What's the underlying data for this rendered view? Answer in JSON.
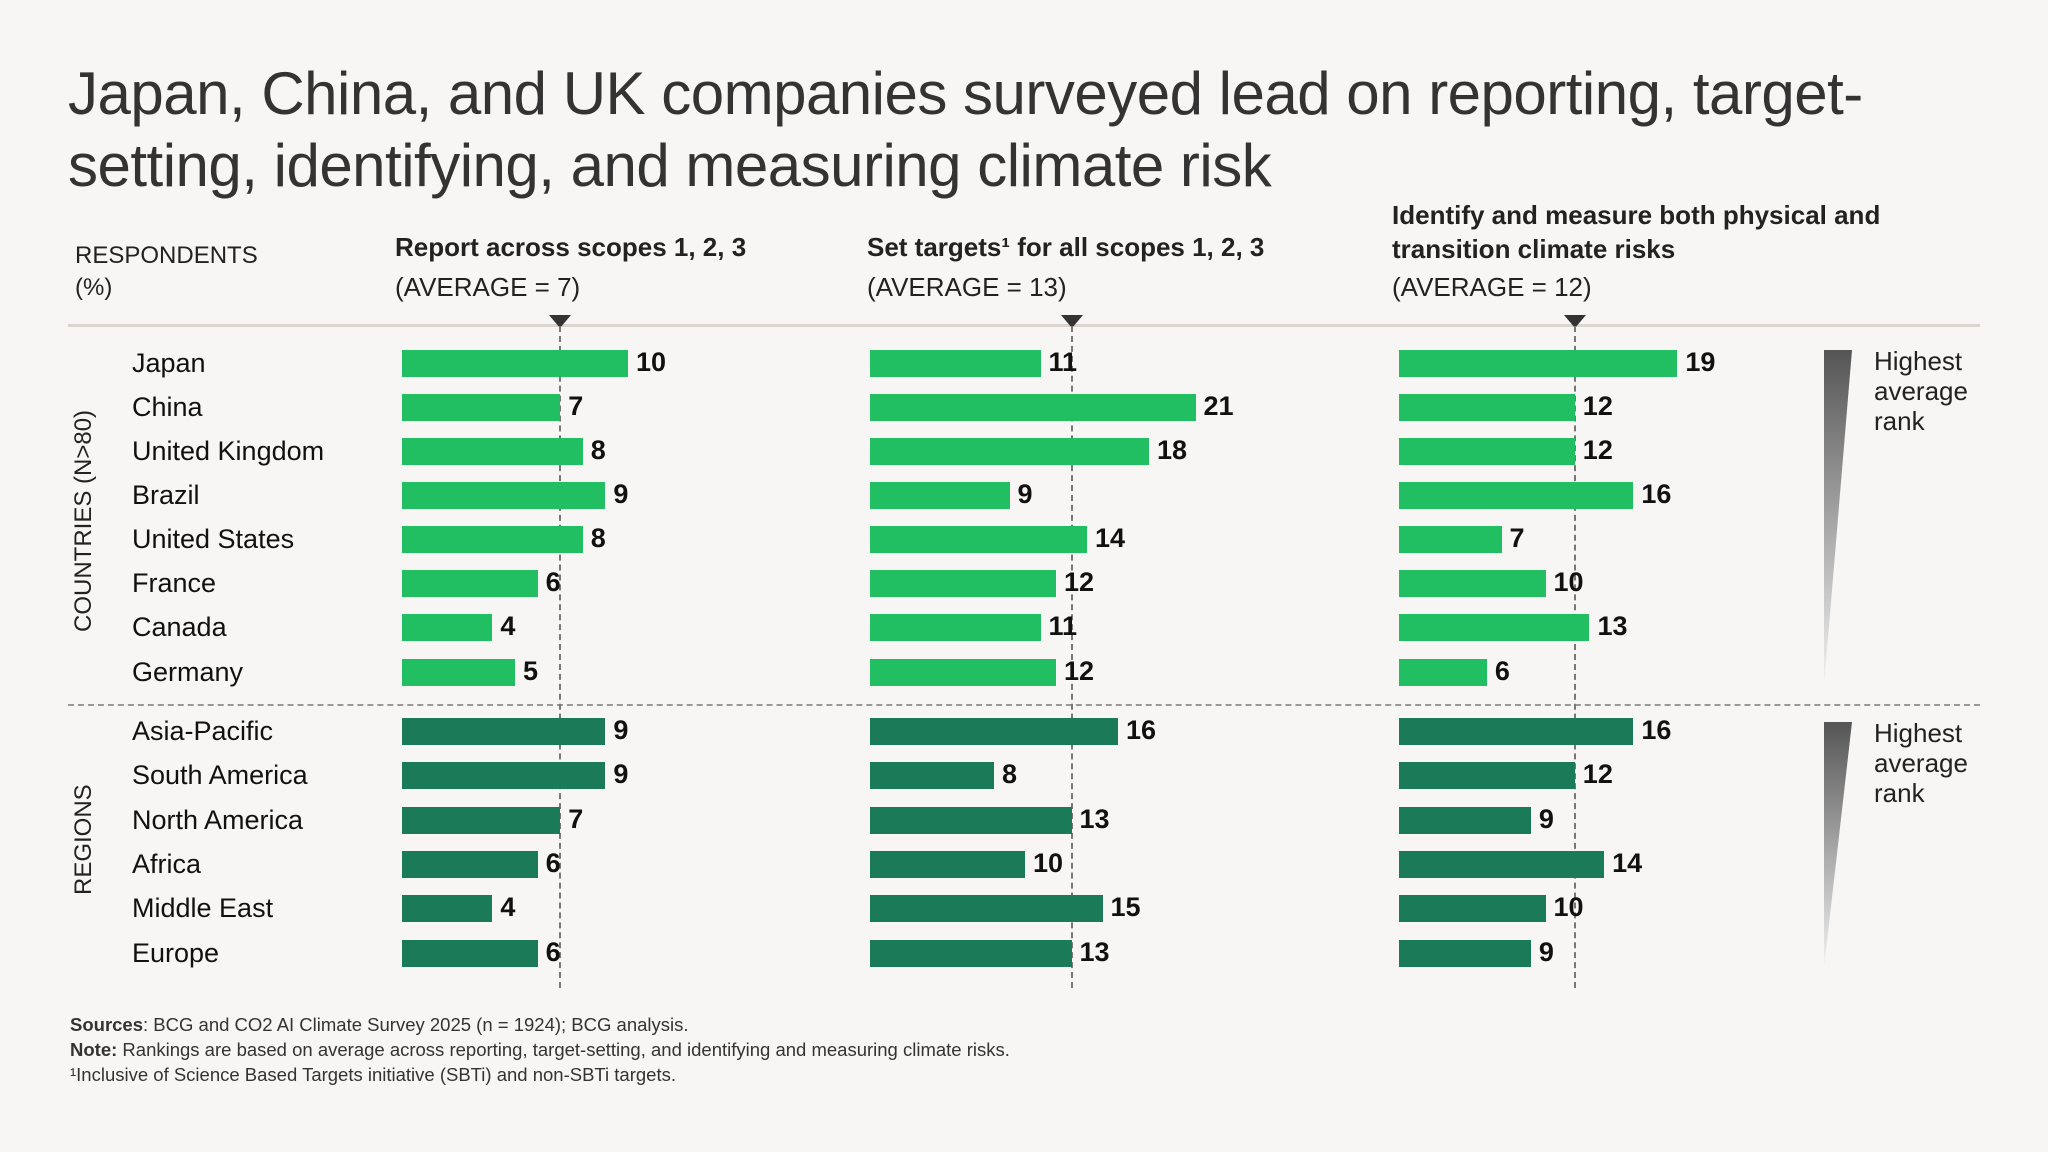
{
  "title": "Japan, China, and UK companies surveyed lead on reporting, target-setting, identifying, and measuring climate risk",
  "respondents_label": "RESPONDENTS",
  "respondents_unit": "(%)",
  "group_labels": {
    "countries": "COUNTRIES (N>80)",
    "regions": "REGIONS"
  },
  "rank_legend": "Highest average rank",
  "colors": {
    "countries": "#22bf62",
    "regions": "#1b7a58",
    "background": "#f7f6f4"
  },
  "footnotes": {
    "sources_label": "Sources",
    "sources_text": ": BCG and CO2 AI Climate Survey 2025 (n = 1924); BCG analysis.",
    "note_label": "Note:",
    "note_text": " Rankings are based on average across reporting, target-setting, and identifying and measuring climate risks.",
    "footnote1": "¹Inclusive of Science Based Targets initiative (SBTi) and non-SBTi targets."
  },
  "chart_data": {
    "type": "bar",
    "orientation": "horizontal",
    "title": "Japan, China, and UK companies surveyed lead on reporting, target-setting, identifying, and measuring climate risk",
    "ylabel": "RESPONDENTS (%)",
    "groups": [
      {
        "name": "COUNTRIES (N>80)",
        "categories": [
          "Japan",
          "China",
          "United Kingdom",
          "Brazil",
          "United States",
          "France",
          "Canada",
          "Germany"
        ]
      },
      {
        "name": "REGIONS",
        "categories": [
          "Asia-Pacific",
          "South America",
          "North America",
          "Africa",
          "Middle East",
          "Europe"
        ]
      }
    ],
    "panels": [
      {
        "title": "Report across scopes 1, 2, 3",
        "average_label": "(AVERAGE = 7)",
        "average": 7,
        "countries": [
          10,
          7,
          8,
          9,
          8,
          6,
          4,
          5
        ],
        "regions": [
          9,
          9,
          7,
          6,
          4,
          6
        ]
      },
      {
        "title": "Set targets¹ for all scopes 1, 2, 3",
        "average_label": "(AVERAGE = 13)",
        "average": 13,
        "countries": [
          11,
          21,
          18,
          9,
          14,
          12,
          11,
          12
        ],
        "regions": [
          16,
          8,
          13,
          10,
          15,
          13
        ]
      },
      {
        "title": "Identify and measure both physical and transition climate risks",
        "average_label": "(AVERAGE = 12)",
        "average": 12,
        "countries": [
          19,
          12,
          12,
          16,
          7,
          10,
          13,
          6
        ],
        "regions": [
          16,
          12,
          9,
          14,
          10,
          9
        ]
      }
    ],
    "grid": false,
    "legend": "right: Highest average rank (wedge)"
  }
}
